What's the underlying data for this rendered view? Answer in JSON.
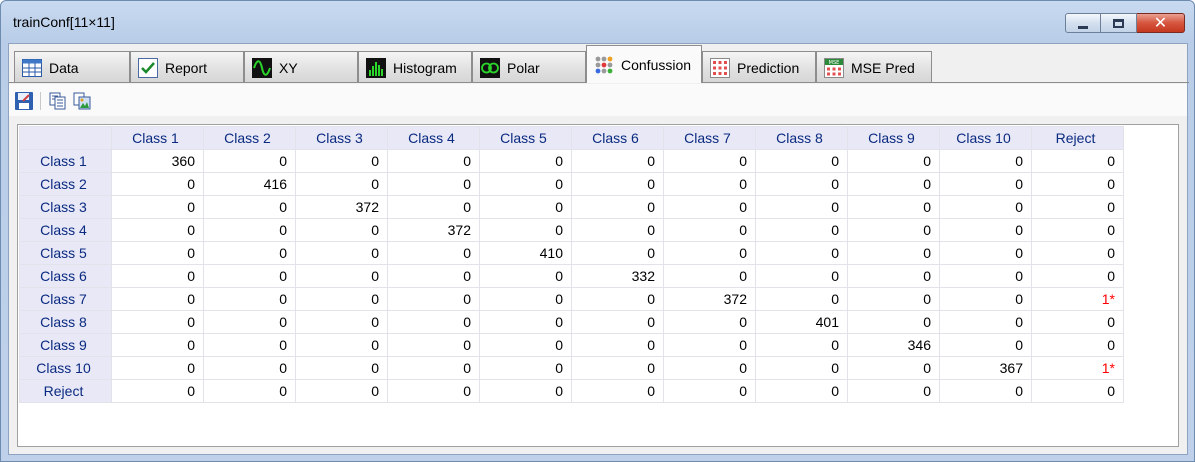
{
  "window": {
    "title": "trainConf[11×11]"
  },
  "tabs": [
    {
      "label": "Data",
      "icon": "data-table-icon",
      "active": false
    },
    {
      "label": "Report",
      "icon": "check-report-icon",
      "active": false
    },
    {
      "label": "XY",
      "icon": "xy-wave-icon",
      "active": false
    },
    {
      "label": "Histogram",
      "icon": "histogram-icon",
      "active": false
    },
    {
      "label": "Polar",
      "icon": "polar-icon",
      "active": false
    },
    {
      "label": "Confussion",
      "icon": "confusion-dots-icon",
      "active": true
    },
    {
      "label": "Prediction",
      "icon": "prediction-grid-icon",
      "active": false
    },
    {
      "label": "MSE Pred",
      "icon": "mse-pred-icon",
      "active": false
    }
  ],
  "toolbar": {
    "buttons": [
      "save-icon",
      "copy-icon",
      "export-image-icon"
    ]
  },
  "table": {
    "columns": [
      "Class 1",
      "Class 2",
      "Class 3",
      "Class 4",
      "Class 5",
      "Class 6",
      "Class 7",
      "Class 8",
      "Class 9",
      "Class 10",
      "Reject"
    ],
    "rows": [
      {
        "label": "Class 1",
        "values": [
          "360",
          "0",
          "0",
          "0",
          "0",
          "0",
          "0",
          "0",
          "0",
          "0",
          "0"
        ]
      },
      {
        "label": "Class 2",
        "values": [
          "0",
          "416",
          "0",
          "0",
          "0",
          "0",
          "0",
          "0",
          "0",
          "0",
          "0"
        ]
      },
      {
        "label": "Class 3",
        "values": [
          "0",
          "0",
          "372",
          "0",
          "0",
          "0",
          "0",
          "0",
          "0",
          "0",
          "0"
        ]
      },
      {
        "label": "Class 4",
        "values": [
          "0",
          "0",
          "0",
          "372",
          "0",
          "0",
          "0",
          "0",
          "0",
          "0",
          "0"
        ]
      },
      {
        "label": "Class 5",
        "values": [
          "0",
          "0",
          "0",
          "0",
          "410",
          "0",
          "0",
          "0",
          "0",
          "0",
          "0"
        ]
      },
      {
        "label": "Class 6",
        "values": [
          "0",
          "0",
          "0",
          "0",
          "0",
          "332",
          "0",
          "0",
          "0",
          "0",
          "0"
        ]
      },
      {
        "label": "Class 7",
        "values": [
          "0",
          "0",
          "0",
          "0",
          "0",
          "0",
          "372",
          "0",
          "0",
          "0",
          "1*"
        ]
      },
      {
        "label": "Class 8",
        "values": [
          "0",
          "0",
          "0",
          "0",
          "0",
          "0",
          "0",
          "401",
          "0",
          "0",
          "0"
        ]
      },
      {
        "label": "Class 9",
        "values": [
          "0",
          "0",
          "0",
          "0",
          "0",
          "0",
          "0",
          "0",
          "346",
          "0",
          "0"
        ]
      },
      {
        "label": "Class 10",
        "values": [
          "0",
          "0",
          "0",
          "0",
          "0",
          "0",
          "0",
          "0",
          "0",
          "367",
          "1*"
        ]
      },
      {
        "label": "Reject",
        "values": [
          "0",
          "0",
          "0",
          "0",
          "0",
          "0",
          "0",
          "0",
          "0",
          "0",
          "0"
        ]
      }
    ],
    "colors": {
      "header_bg": "#e8e8f7",
      "header_text": "#0a2a80",
      "flag": "#ff0000"
    }
  }
}
